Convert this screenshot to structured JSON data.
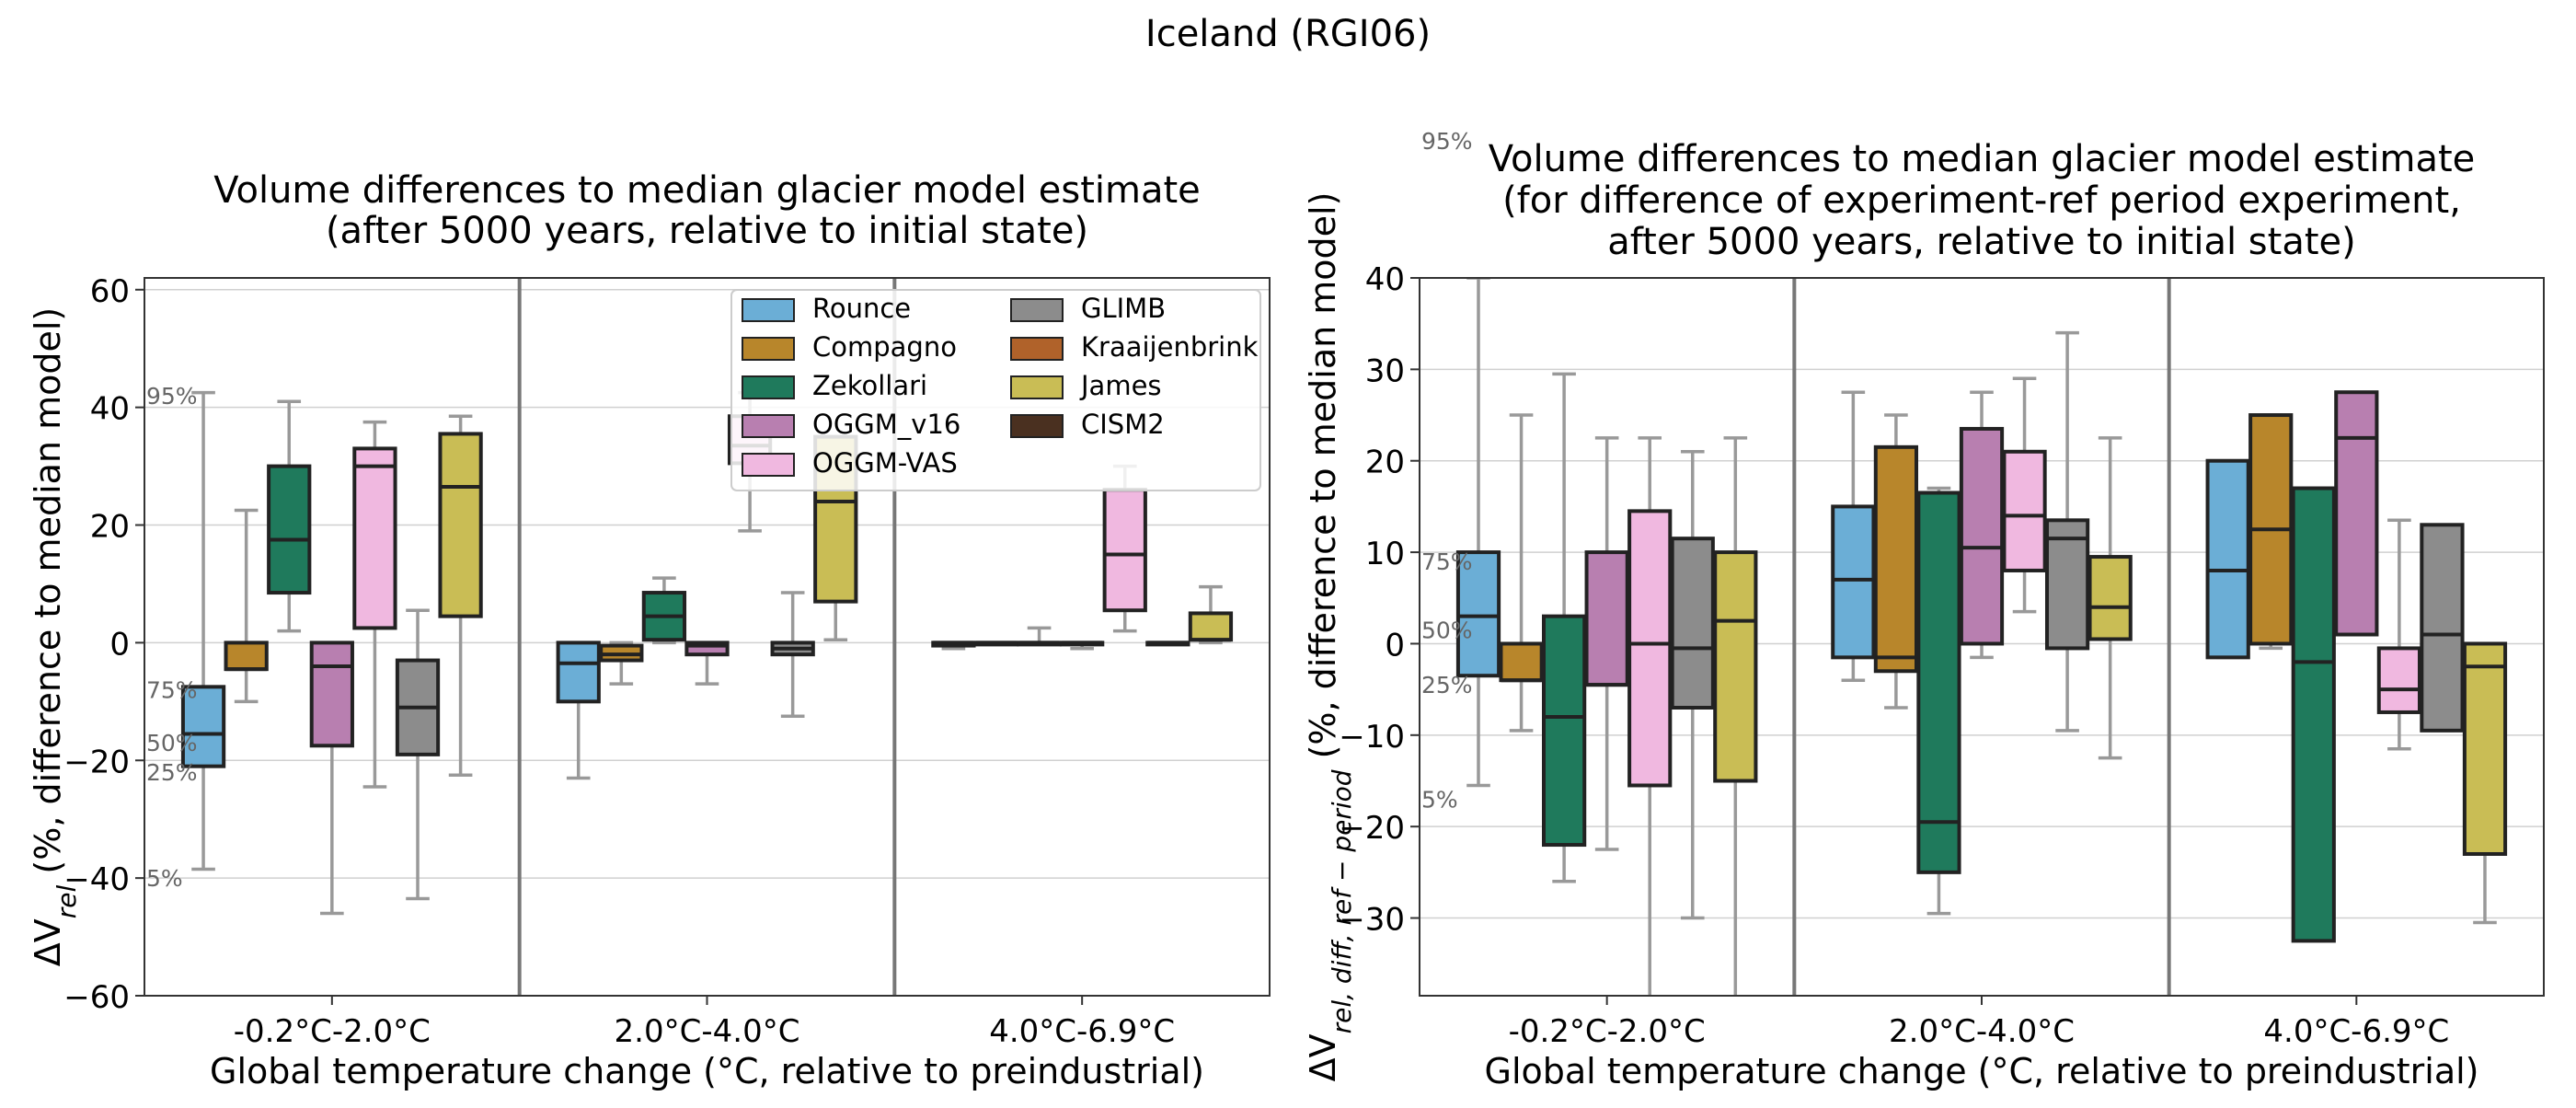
{
  "figure": {
    "suptitle": "Iceland (RGI06)"
  },
  "colors": {
    "Rounce": "#6baed6",
    "Compagno": "#b8862b",
    "Zekollari": "#1f7a5c",
    "OGGM_v16": "#b87fb0",
    "OGGM-VAS": "#f0b8e0",
    "GLIMB": "#8c8c8c",
    "Kraaijenbrink": "#b0622a",
    "James": "#c9bd55",
    "CISM2": "#4a3020"
  },
  "chart_data": [
    {
      "type": "box",
      "title": "Volume differences to median glacier model estimate\n(after 5000 years, relative to initial state)",
      "xlabel": "Global temperature change (°C, relative to preindustrial)",
      "ylabel_main": "ΔV",
      "ylabel_sub": "rel",
      "ylabel_rest": " (%, difference to median model)",
      "ylim": [
        -60,
        62
      ],
      "yticks": [
        -60,
        -40,
        -20,
        0,
        20,
        40,
        60
      ],
      "grid": true,
      "legend": {
        "placement": "top-right",
        "columns": 2,
        "entries": [
          "Rounce",
          "Compagno",
          "Zekollari",
          "OGGM_v16",
          "OGGM-VAS",
          "GLIMB",
          "Kraaijenbrink",
          "James",
          "CISM2"
        ]
      },
      "percentile_labels": [
        {
          "text": "95%",
          "y": 42
        },
        {
          "text": "75%",
          "y": -8
        },
        {
          "text": "50%",
          "y": -17
        },
        {
          "text": "25%",
          "y": -22
        },
        {
          "text": "5%",
          "y": -40
        }
      ],
      "categories": [
        "-0.2°C-2.0°C",
        "2.0°C-4.0°C",
        "4.0°C-6.9°C"
      ],
      "series_order": [
        "Rounce",
        "Compagno",
        "Zekollari",
        "OGGM_v16",
        "OGGM-VAS",
        "GLIMB",
        "James"
      ],
      "boxes": [
        [
          {
            "model": "Rounce",
            "w5": -38.5,
            "q1": -21,
            "med": -15.5,
            "q3": -7.5,
            "w95": 42.5
          },
          {
            "model": "Compagno",
            "w5": -10,
            "q1": -4.5,
            "med": -4.5,
            "q3": 0,
            "w95": 22.5
          },
          {
            "model": "Zekollari",
            "w5": 2,
            "q1": 8.5,
            "med": 17.5,
            "q3": 30,
            "w95": 41
          },
          {
            "model": "OGGM_v16",
            "w5": -46,
            "q1": -17.5,
            "med": -4,
            "q3": 0,
            "w95": 0
          },
          {
            "model": "OGGM-VAS",
            "w5": -24.5,
            "q1": 2.5,
            "med": 30,
            "q3": 33,
            "w95": 37.5
          },
          {
            "model": "GLIMB",
            "w5": -43.5,
            "q1": -19,
            "med": -11,
            "q3": -3,
            "w95": 5.5
          },
          {
            "model": "James",
            "w5": -22.5,
            "q1": 4.5,
            "med": 26.5,
            "q3": 35.5,
            "w95": 38.5
          }
        ],
        [
          {
            "model": "Rounce",
            "w5": -23,
            "q1": -10,
            "med": -3.5,
            "q3": 0,
            "w95": 0
          },
          {
            "model": "Compagno",
            "w5": -7,
            "q1": -3,
            "med": -2,
            "q3": -0.5,
            "w95": 0
          },
          {
            "model": "Zekollari",
            "w5": 0,
            "q1": 0.5,
            "med": 4.5,
            "q3": 8.5,
            "w95": 11
          },
          {
            "model": "OGGM_v16",
            "w5": -7,
            "q1": -2,
            "med": -0.5,
            "q3": 0,
            "w95": 0
          },
          {
            "model": "OGGM-VAS",
            "w5": 19,
            "q1": 30.5,
            "med": 33.5,
            "q3": 38.5,
            "w95": 42.5
          },
          {
            "model": "GLIMB",
            "w5": -12.5,
            "q1": -2,
            "med": -1,
            "q3": 0,
            "w95": 8.5
          },
          {
            "model": "James",
            "w5": 0.5,
            "q1": 7,
            "med": 24,
            "q3": 35,
            "w95": 35
          }
        ],
        [
          {
            "model": "Rounce",
            "w5": -1,
            "q1": -0.5,
            "med": 0,
            "q3": 0,
            "w95": 0
          },
          {
            "model": "Compagno",
            "w5": 0,
            "q1": 0,
            "med": 0,
            "q3": 0,
            "w95": 0
          },
          {
            "model": "Zekollari",
            "w5": 0,
            "q1": 0,
            "med": 0,
            "q3": 0,
            "w95": 2.5
          },
          {
            "model": "OGGM_v16",
            "w5": -1,
            "q1": 0,
            "med": 0,
            "q3": 0,
            "w95": 0
          },
          {
            "model": "OGGM-VAS",
            "w5": 2,
            "q1": 5.5,
            "med": 15,
            "q3": 26,
            "w95": 30
          },
          {
            "model": "GLIMB",
            "w5": 0,
            "q1": 0,
            "med": 0,
            "q3": 0,
            "w95": 0
          },
          {
            "model": "James",
            "w5": 0,
            "q1": 0.5,
            "med": 0.5,
            "q3": 5,
            "w95": 9.5
          }
        ]
      ]
    },
    {
      "type": "box",
      "title": "Volume differences to median glacier model estimate\n(for difference of experiment-ref period experiment,\nafter 5000 years, relative to initial state)",
      "xlabel": "Global temperature change (°C, relative to preindustrial)",
      "ylabel_main": "ΔV",
      "ylabel_sub": "rel, diff, ref − period",
      "ylabel_rest": " (%, difference to median model)",
      "ylim": [
        -38.5,
        40
      ],
      "yticks": [
        -30,
        -20,
        -10,
        0,
        10,
        20,
        30,
        40
      ],
      "grid": true,
      "percentile_labels": [
        {
          "text": "95%",
          "y": 55
        },
        {
          "text": "75%",
          "y": 9
        },
        {
          "text": "50%",
          "y": 1.5
        },
        {
          "text": "25%",
          "y": -4.5
        },
        {
          "text": "5%",
          "y": -17
        }
      ],
      "categories": [
        "-0.2°C-2.0°C",
        "2.0°C-4.0°C",
        "4.0°C-6.9°C"
      ],
      "series_order": [
        "Rounce",
        "Compagno",
        "Zekollari",
        "OGGM_v16",
        "OGGM-VAS",
        "GLIMB",
        "James"
      ],
      "boxes": [
        [
          {
            "model": "Rounce",
            "w5": -15.5,
            "q1": -3.5,
            "med": 3,
            "q3": 10,
            "w95": 40
          },
          {
            "model": "Compagno",
            "w5": -9.5,
            "q1": -4,
            "med": -4,
            "q3": 0,
            "w95": 25
          },
          {
            "model": "Zekollari",
            "w5": -26,
            "q1": -22,
            "med": -8,
            "q3": 3,
            "w95": 29.5
          },
          {
            "model": "OGGM_v16",
            "w5": -22.5,
            "q1": -4.5,
            "med": -4.5,
            "q3": 10,
            "w95": 22.5
          },
          {
            "model": "OGGM-VAS",
            "w5": -40,
            "q1": -15.5,
            "med": 0,
            "q3": 14.5,
            "w95": 22.5
          },
          {
            "model": "GLIMB",
            "w5": -30,
            "q1": -7,
            "med": -0.5,
            "q3": 11.5,
            "w95": 21
          },
          {
            "model": "James",
            "w5": -40,
            "q1": -15,
            "med": 2.5,
            "q3": 10,
            "w95": 22.5
          }
        ],
        [
          {
            "model": "Rounce",
            "w5": -4,
            "q1": -1.5,
            "med": 7,
            "q3": 15,
            "w95": 27.5
          },
          {
            "model": "Compagno",
            "w5": -7,
            "q1": -3,
            "med": -1.5,
            "q3": 21.5,
            "w95": 25
          },
          {
            "model": "Zekollari",
            "w5": -29.5,
            "q1": -25,
            "med": -19.5,
            "q3": 16.5,
            "w95": 17
          },
          {
            "model": "OGGM_v16",
            "w5": -1.5,
            "q1": 0,
            "med": 10.5,
            "q3": 23.5,
            "w95": 27.5
          },
          {
            "model": "OGGM-VAS",
            "w5": 3.5,
            "q1": 8,
            "med": 14,
            "q3": 21,
            "w95": 29
          },
          {
            "model": "GLIMB",
            "w5": -9.5,
            "q1": -0.5,
            "med": 11.5,
            "q3": 13.5,
            "w95": 34
          },
          {
            "model": "James",
            "w5": -12.5,
            "q1": 0.5,
            "med": 4,
            "q3": 9.5,
            "w95": 22.5
          }
        ],
        [
          {
            "model": "Rounce",
            "w5": -1.5,
            "q1": -1.5,
            "med": 8,
            "q3": 20,
            "w95": 20
          },
          {
            "model": "Compagno",
            "w5": -0.5,
            "q1": 0,
            "med": 12.5,
            "q3": 25,
            "w95": 25
          },
          {
            "model": "Zekollari",
            "w5": -32.5,
            "q1": -32.5,
            "med": -2,
            "q3": 17,
            "w95": 17
          },
          {
            "model": "OGGM_v16",
            "w5": 1,
            "q1": 1,
            "med": 22.5,
            "q3": 27.5,
            "w95": 27.5
          },
          {
            "model": "OGGM-VAS",
            "w5": -11.5,
            "q1": -7.5,
            "med": -5,
            "q3": -0.5,
            "w95": 13.5
          },
          {
            "model": "GLIMB",
            "w5": -9.5,
            "q1": -9.5,
            "med": 1,
            "q3": 13,
            "w95": 13
          },
          {
            "model": "James",
            "w5": -30.5,
            "q1": -23,
            "med": -2.5,
            "q3": 0,
            "w95": 0
          }
        ]
      ]
    }
  ]
}
